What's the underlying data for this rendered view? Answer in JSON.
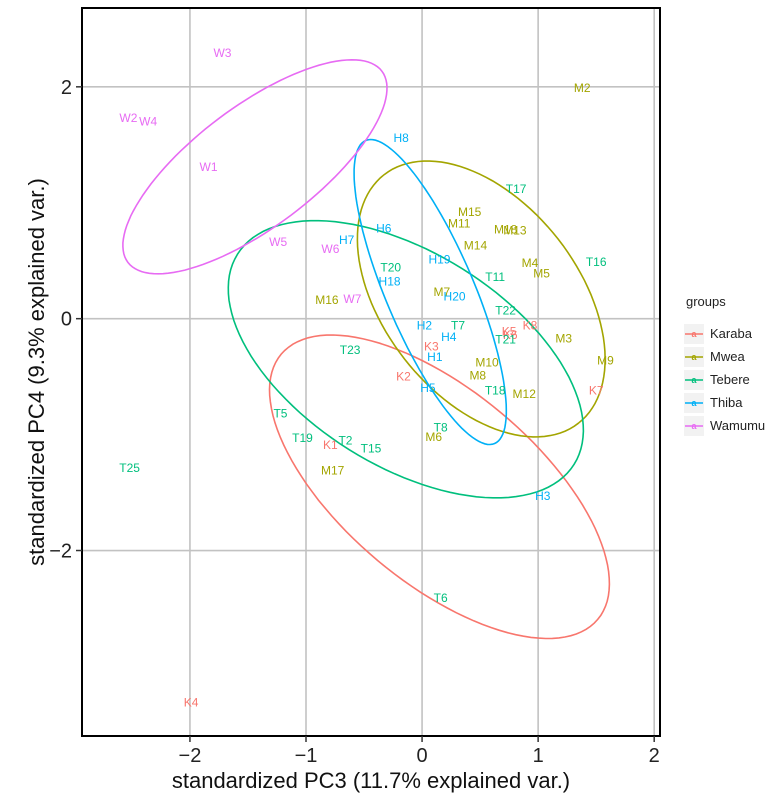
{
  "chart_data": {
    "type": "scatter",
    "xlabel": "standardized PC3 (11.7% explained var.)",
    "ylabel": "standardized PC4 (9.3% explained var.)",
    "xlim": [
      -2.93,
      2.05
    ],
    "ylim": [
      -3.6,
      2.68
    ],
    "xticks": [
      -2,
      -1,
      0,
      1,
      2
    ],
    "xtick_labels": [
      "−2",
      "−1",
      "0",
      "1",
      "2"
    ],
    "yticks": [
      -2,
      0,
      2
    ],
    "ytick_labels": [
      "−2",
      "0",
      "2"
    ],
    "grid": true,
    "legend": {
      "title": "groups",
      "position": "right",
      "entries": [
        {
          "name": "Karaba",
          "color": "#F8766D"
        },
        {
          "name": "Mwea",
          "color": "#A3A500"
        },
        {
          "name": "Tebere",
          "color": "#00BF7D"
        },
        {
          "name": "Thiba",
          "color": "#00B0F6"
        },
        {
          "name": "Wamumu",
          "color": "#E76BF3"
        }
      ]
    },
    "series": [
      {
        "name": "Karaba",
        "color": "#F8766D",
        "points": [
          {
            "label": "K1",
            "x": -0.79,
            "y": -1.09
          },
          {
            "label": "K2",
            "x": -0.16,
            "y": -0.5
          },
          {
            "label": "K3",
            "x": 0.08,
            "y": -0.24
          },
          {
            "label": "K4",
            "x": -1.99,
            "y": -3.31
          },
          {
            "label": "K5",
            "x": 0.75,
            "y": -0.11
          },
          {
            "label": "K6",
            "x": 0.76,
            "y": -0.14
          },
          {
            "label": "K7",
            "x": 1.5,
            "y": -0.62
          },
          {
            "label": "K8",
            "x": 0.93,
            "y": -0.06
          }
        ]
      },
      {
        "name": "Mwea",
        "color": "#A3A500",
        "points": [
          {
            "label": "M2",
            "x": 1.38,
            "y": 1.99
          },
          {
            "label": "M3",
            "x": 1.22,
            "y": -0.17
          },
          {
            "label": "M4",
            "x": 0.93,
            "y": 0.48
          },
          {
            "label": "M5",
            "x": 1.03,
            "y": 0.39
          },
          {
            "label": "M6",
            "x": 0.1,
            "y": -1.02
          },
          {
            "label": "M7",
            "x": 0.17,
            "y": 0.23
          },
          {
            "label": "M8",
            "x": 0.48,
            "y": -0.49
          },
          {
            "label": "M9",
            "x": 1.58,
            "y": -0.36
          },
          {
            "label": "M10",
            "x": 0.56,
            "y": -0.38
          },
          {
            "label": "M11",
            "x": 0.32,
            "y": 0.82
          },
          {
            "label": "M12",
            "x": 0.88,
            "y": -0.65
          },
          {
            "label": "M13",
            "x": 0.8,
            "y": 0.76
          },
          {
            "label": "M14",
            "x": 0.46,
            "y": 0.63
          },
          {
            "label": "M15",
            "x": 0.41,
            "y": 0.92
          },
          {
            "label": "M16",
            "x": -0.82,
            "y": 0.16
          },
          {
            "label": "M17",
            "x": -0.77,
            "y": -1.31
          },
          {
            "label": "M18",
            "x": 0.72,
            "y": 0.77
          }
        ]
      },
      {
        "name": "Tebere",
        "color": "#00BF7D",
        "points": [
          {
            "label": "T2",
            "x": -0.66,
            "y": -1.05
          },
          {
            "label": "T5",
            "x": -1.22,
            "y": -0.82
          },
          {
            "label": "T6",
            "x": 0.16,
            "y": -2.41
          },
          {
            "label": "T7",
            "x": 0.31,
            "y": -0.06
          },
          {
            "label": "T8",
            "x": 0.16,
            "y": -0.94
          },
          {
            "label": "T11",
            "x": 0.63,
            "y": 0.36
          },
          {
            "label": "T15",
            "x": -0.44,
            "y": -1.12
          },
          {
            "label": "T16",
            "x": 1.5,
            "y": 0.49
          },
          {
            "label": "T17",
            "x": 0.81,
            "y": 1.12
          },
          {
            "label": "T18",
            "x": 0.63,
            "y": -0.62
          },
          {
            "label": "T19",
            "x": -1.03,
            "y": -1.03
          },
          {
            "label": "T20",
            "x": -0.27,
            "y": 0.44
          },
          {
            "label": "T21",
            "x": 0.72,
            "y": -0.18
          },
          {
            "label": "T22",
            "x": 0.72,
            "y": 0.07
          },
          {
            "label": "T23",
            "x": -0.62,
            "y": -0.27
          },
          {
            "label": "T25",
            "x": -2.52,
            "y": -1.29
          }
        ]
      },
      {
        "name": "Thiba",
        "color": "#00B0F6",
        "points": [
          {
            "label": "H1",
            "x": 0.11,
            "y": -0.33
          },
          {
            "label": "H2",
            "x": 0.02,
            "y": -0.06
          },
          {
            "label": "H3",
            "x": 1.04,
            "y": -1.53
          },
          {
            "label": "H4",
            "x": 0.23,
            "y": -0.16
          },
          {
            "label": "H5",
            "x": 0.05,
            "y": -0.6
          },
          {
            "label": "H6",
            "x": -0.33,
            "y": 0.78
          },
          {
            "label": "H7",
            "x": -0.65,
            "y": 0.68
          },
          {
            "label": "H8",
            "x": -0.18,
            "y": 1.56
          },
          {
            "label": "H18",
            "x": -0.28,
            "y": 0.32
          },
          {
            "label": "H19",
            "x": 0.15,
            "y": 0.51
          },
          {
            "label": "H20",
            "x": 0.28,
            "y": 0.19
          }
        ]
      },
      {
        "name": "Wamumu",
        "color": "#E76BF3",
        "points": [
          {
            "label": "W1",
            "x": -1.84,
            "y": 1.31
          },
          {
            "label": "W2",
            "x": -2.53,
            "y": 1.73
          },
          {
            "label": "W3",
            "x": -1.72,
            "y": 2.29
          },
          {
            "label": "W4",
            "x": -2.36,
            "y": 1.7
          },
          {
            "label": "W5",
            "x": -1.24,
            "y": 0.66
          },
          {
            "label": "W6",
            "x": -0.79,
            "y": 0.6
          },
          {
            "label": "W7",
            "x": -0.6,
            "y": 0.17
          }
        ]
      }
    ],
    "ellipses": [
      {
        "name": "Karaba",
        "color": "#F8766D",
        "center": [
          0.15,
          -1.45
        ],
        "rx": 1.78,
        "ry": 0.83,
        "rotate_deg": -40
      },
      {
        "name": "Mwea",
        "color": "#A3A500",
        "center": [
          0.51,
          0.17
        ],
        "rx": 1.36,
        "ry": 0.84,
        "rotate_deg": -52
      },
      {
        "name": "Tebere",
        "color": "#00BF7D",
        "center": [
          -0.14,
          -0.35
        ],
        "rx": 1.71,
        "ry": 0.92,
        "rotate_deg": -32
      },
      {
        "name": "Thiba",
        "color": "#00B0F6",
        "center": [
          0.07,
          0.23
        ],
        "rx": 1.42,
        "ry": 0.38,
        "rotate_deg": -67
      },
      {
        "name": "Wamumu",
        "color": "#E76BF3",
        "center": [
          -1.44,
          1.31
        ],
        "rx": 1.37,
        "ry": 0.52,
        "rotate_deg": 37
      }
    ]
  }
}
